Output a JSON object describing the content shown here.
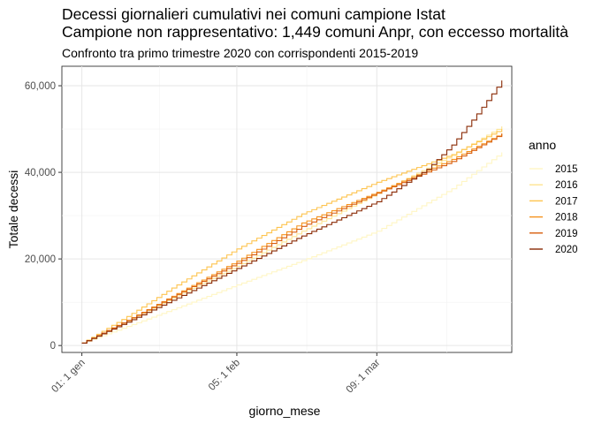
{
  "chart_data": {
    "type": "line",
    "title": "Decessi giornalieri cumulativi nei comuni campione Istat",
    "title_line2": "Campione non rappresentativo: 1,449 comuni Anpr, con eccesso mortalità",
    "subtitle": "Confronto tra primo trimestre 2020 con corrispondenti 2015-2019",
    "xlabel": "giorno_mese",
    "ylabel": "Totale decessi",
    "x_ticks": [
      "01: 1 gen",
      "05: 1 feb",
      "09: 1 mar"
    ],
    "x_tick_days": [
      1,
      32,
      60
    ],
    "xlim": [
      -3,
      87
    ],
    "y_ticks": [
      "0",
      "20,000",
      "40,000",
      "60,000"
    ],
    "y_tick_values": [
      0,
      20000,
      40000,
      60000
    ],
    "ylim": [
      -1600,
      64500
    ],
    "grid": true,
    "step": true,
    "legend_title": "anno",
    "legend_position": "right",
    "series": [
      {
        "name": "2015",
        "color": "#FFF6C4",
        "x": [
          1,
          10,
          20,
          32,
          45,
          60,
          75,
          85
        ],
        "values": [
          550,
          4400,
          8700,
          14000,
          19600,
          26400,
          36200,
          44600
        ]
      },
      {
        "name": "2016",
        "color": "#FEE491",
        "x": [
          1,
          10,
          20,
          32,
          45,
          60,
          75,
          85
        ],
        "values": [
          550,
          5700,
          11500,
          18300,
          26400,
          35100,
          43900,
          50600
        ]
      },
      {
        "name": "2017",
        "color": "#FEC44F",
        "x": [
          1,
          10,
          20,
          32,
          45,
          60,
          75,
          85
        ],
        "values": [
          550,
          6700,
          14000,
          22300,
          30400,
          37700,
          44100,
          50000
        ]
      },
      {
        "name": "2018",
        "color": "#F5931E",
        "x": [
          1,
          10,
          20,
          32,
          45,
          60,
          75,
          85
        ],
        "values": [
          550,
          5800,
          12000,
          19500,
          28300,
          35400,
          43000,
          49000
        ]
      },
      {
        "name": "2019",
        "color": "#D95F0E",
        "x": [
          1,
          10,
          20,
          32,
          45,
          60,
          75,
          85
        ],
        "values": [
          550,
          5800,
          11800,
          19000,
          27500,
          35200,
          42500,
          48900
        ]
      },
      {
        "name": "2020",
        "color": "#8A2A05",
        "x": [
          1,
          10,
          20,
          32,
          45,
          60,
          70,
          75,
          80,
          85
        ],
        "values": [
          550,
          5400,
          11000,
          17800,
          25300,
          33200,
          40700,
          46300,
          53500,
          61200
        ]
      }
    ]
  }
}
